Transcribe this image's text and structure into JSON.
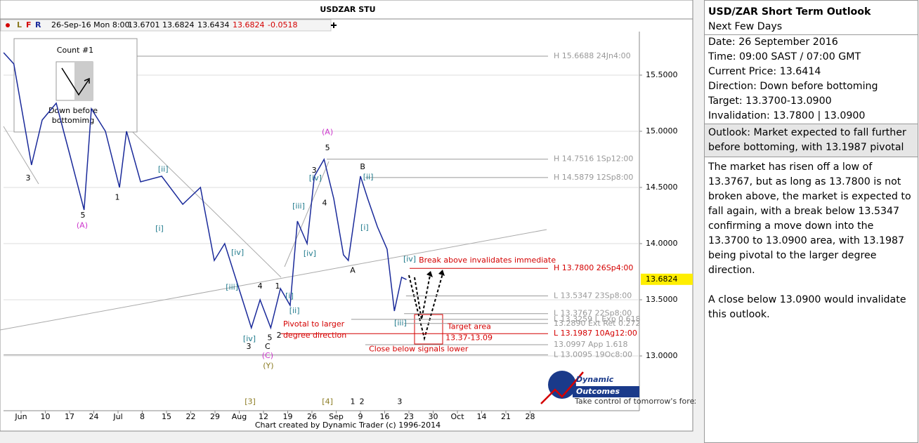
{
  "chart_data": {
    "type": "line",
    "title": "USDZAR STU",
    "color": "#1a2a9a",
    "toolbar": {
      "flags": [
        "L",
        "F",
        "R"
      ],
      "date": "26-Sep-16 Mon 8:00",
      "fields": [
        "13.6701",
        "13.6824",
        "13.6434",
        "13.6824",
        "-0.0518"
      ]
    },
    "x": [
      -0.72,
      -0.3,
      0.43,
      0.87,
      1.45,
      2.0,
      2.6,
      2.9,
      3.48,
      4.06,
      4.35,
      4.93,
      5.8,
      6.67,
      7.4,
      7.97,
      8.4,
      8.84,
      9.5,
      9.86,
      10.3,
      10.7,
      11.1,
      11.4,
      11.8,
      12.1,
      12.5,
      12.9,
      13.3,
      13.5,
      14.0,
      14.3,
      14.7,
      15.1,
      15.4,
      15.7,
      15.9
    ],
    "values": [
      15.7,
      15.6,
      14.7,
      15.1,
      15.25,
      14.8,
      14.3,
      15.2,
      15.0,
      14.5,
      15.0,
      14.55,
      14.6,
      14.35,
      14.5,
      13.85,
      14.0,
      13.7,
      13.25,
      13.5,
      13.25,
      13.6,
      13.45,
      14.2,
      14.0,
      14.6,
      14.75,
      14.4,
      13.9,
      13.85,
      14.6,
      14.4,
      14.15,
      13.95,
      13.4,
      13.7,
      13.68
    ],
    "xlim": [
      -0.7246,
      25.507
    ],
    "ylim": [
      12.5125,
      15.8875
    ],
    "xticks": [
      {
        "value": 0,
        "label": "Jun"
      },
      {
        "value": 1,
        "label": "10"
      },
      {
        "value": 2,
        "label": "17"
      },
      {
        "value": 3,
        "label": "24"
      },
      {
        "value": 4,
        "label": "Jul"
      },
      {
        "value": 5,
        "label": "8"
      },
      {
        "value": 6,
        "label": "15"
      },
      {
        "value": 7,
        "label": "22"
      },
      {
        "value": 8,
        "label": "29"
      },
      {
        "value": 9,
        "label": "Aug"
      },
      {
        "value": 10,
        "label": "12"
      },
      {
        "value": 11,
        "label": "19"
      },
      {
        "value": 12,
        "label": "26"
      },
      {
        "value": 13,
        "label": "Sep"
      },
      {
        "value": 14,
        "label": "9"
      },
      {
        "value": 15,
        "label": "16"
      },
      {
        "value": 16,
        "label": "23"
      },
      {
        "value": 17,
        "label": "30"
      },
      {
        "value": 18,
        "label": "Oct"
      },
      {
        "value": 19,
        "label": "14"
      },
      {
        "value": 20,
        "label": "21"
      },
      {
        "value": 21,
        "label": "28"
      }
    ],
    "yticks": [
      {
        "value": 15.5,
        "label": "15.5000"
      },
      {
        "value": 15,
        "label": "15.0000"
      },
      {
        "value": 14.5,
        "label": "14.5000"
      },
      {
        "value": 14,
        "label": "14.0000"
      },
      {
        "value": 13.5,
        "label": "13.5000"
      },
      {
        "value": 13,
        "label": "13.0000"
      }
    ],
    "grid": true,
    "last_price": 13.6824,
    "levels": [
      {
        "value": 15.6688,
        "label": "H 15.6688 24Jn4:00",
        "start": 4.78,
        "color": "#999999"
      },
      {
        "value": 14.7516,
        "label": "H 14.7516 1Sp12:00",
        "start": 12.61,
        "color": "#999999"
      },
      {
        "value": 14.5879,
        "label": "H 14.5879 12Sp8:00",
        "start": 14.2,
        "color": "#999999"
      },
      {
        "value": 13.78,
        "label": "H 13.7800 26Sp4:00",
        "start": 16.03,
        "color": "#d40000"
      },
      {
        "value": 13.5347,
        "label": "L 13.5347 23Sp8:00",
        "start": 15.88,
        "color": "#999999"
      },
      {
        "value": 13.3767,
        "label": "L 13.3767 22Sp8:00",
        "start": 15.8,
        "color": "#999999"
      },
      {
        "value": 13.3259,
        "label": "L 13.3259 L Exp 0.618",
        "start": 13.62,
        "color": "#999999"
      },
      {
        "value": 13.289,
        "label": "13.2890 Ext Ret 0.272",
        "start": 15.8,
        "color": "#999999"
      },
      {
        "value": 13.1987,
        "label": "L 13.1987 10Ag12:00",
        "start": 10.72,
        "color": "#d40000"
      },
      {
        "value": 13.0997,
        "label": "13.0997 App 1.618",
        "start": 14.2,
        "color": "#999999"
      },
      {
        "value": 13.0095,
        "label": "L 13.0095 19Oc8:00",
        "start": -0.72,
        "color": "#999999"
      }
    ],
    "wave_labels": [
      {
        "text": "3",
        "x": 0.29,
        "y": 14.58,
        "color": "#000000"
      },
      {
        "text": "5",
        "x": 2.55,
        "y": 14.25,
        "color": "#000000"
      },
      {
        "text": "(A)",
        "x": 2.52,
        "y": 14.16,
        "color": "#cc33cc"
      },
      {
        "text": "1",
        "x": 3.97,
        "y": 14.41,
        "color": "#000000"
      },
      {
        "text": "[ii]",
        "x": 5.86,
        "y": 14.66,
        "color": "#1f7a8c"
      },
      {
        "text": "[i]",
        "x": 5.71,
        "y": 14.13,
        "color": "#1f7a8c"
      },
      {
        "text": "[iv]",
        "x": 8.93,
        "y": 13.92,
        "color": "#1f7a8c"
      },
      {
        "text": "[iii]",
        "x": 8.7,
        "y": 13.61,
        "color": "#1f7a8c"
      },
      {
        "text": "4",
        "x": 9.86,
        "y": 13.62,
        "color": "#000000"
      },
      {
        "text": "1",
        "x": 10.58,
        "y": 13.62,
        "color": "#000000"
      },
      {
        "text": "[i]",
        "x": 11.07,
        "y": 13.53,
        "color": "#1f7a8c"
      },
      {
        "text": "[ii]",
        "x": 11.28,
        "y": 13.4,
        "color": "#1f7a8c"
      },
      {
        "text": "[iii]",
        "x": 11.45,
        "y": 14.33,
        "color": "#1f7a8c"
      },
      {
        "text": "[iv]",
        "x": 11.91,
        "y": 13.91,
        "color": "#1f7a8c"
      },
      {
        "text": "3",
        "x": 12.09,
        "y": 14.65,
        "color": "#000000"
      },
      {
        "text": "[iv]",
        "x": 12.14,
        "y": 14.58,
        "color": "#1f7a8c"
      },
      {
        "text": "4",
        "x": 12.52,
        "y": 14.36,
        "color": "#000000"
      },
      {
        "text": "5",
        "x": 12.64,
        "y": 14.85,
        "color": "#000000"
      },
      {
        "text": "(A)",
        "x": 12.64,
        "y": 14.99,
        "color": "#cc33cc"
      },
      {
        "text": "B",
        "x": 14.09,
        "y": 14.68,
        "color": "#000000"
      },
      {
        "text": "[ii]",
        "x": 14.32,
        "y": 14.59,
        "color": "#1f7a8c"
      },
      {
        "text": "[i]",
        "x": 14.17,
        "y": 14.14,
        "color": "#1f7a8c"
      },
      {
        "text": "A",
        "x": 13.68,
        "y": 13.76,
        "color": "#000000"
      },
      {
        "text": "[iv]",
        "x": 16.03,
        "y": 13.86,
        "color": "#1f7a8c"
      },
      {
        "text": "[iii]",
        "x": 15.65,
        "y": 13.29,
        "color": "#1f7a8c"
      },
      {
        "text": "[iv]",
        "x": 9.42,
        "y": 13.15,
        "color": "#1f7a8c"
      },
      {
        "text": "3",
        "x": 9.39,
        "y": 13.08,
        "color": "#000000"
      },
      {
        "text": "5",
        "x": 10.26,
        "y": 13.16,
        "color": "#000000"
      },
      {
        "text": "C",
        "x": 10.17,
        "y": 13.08,
        "color": "#000000"
      },
      {
        "text": "(C)",
        "x": 10.17,
        "y": 13.0,
        "color": "#cc33cc"
      },
      {
        "text": "(Y)",
        "x": 10.2,
        "y": 12.91,
        "color": "#8a7a20"
      },
      {
        "text": "2",
        "x": 10.64,
        "y": 13.18,
        "color": "#000000"
      },
      {
        "text": "[3]",
        "x": 9.45,
        "y": 12.59,
        "color": "#8a7a20"
      },
      {
        "text": "[4]",
        "x": 12.64,
        "y": 12.59,
        "color": "#8a7a20"
      },
      {
        "text": "1",
        "x": 13.68,
        "y": 12.59,
        "color": "#000000"
      },
      {
        "text": "2",
        "x": 14.06,
        "y": 12.59,
        "color": "#000000"
      },
      {
        "text": "3",
        "x": 15.62,
        "y": 12.59,
        "color": "#000000"
      }
    ],
    "notes": [
      {
        "text": "Pivotal to larger",
        "x": 10.81,
        "y": 13.28
      },
      {
        "text": "degree direction",
        "x": 10.81,
        "y": 13.18
      },
      {
        "text": "Target area",
        "x": 17.59,
        "y": 13.26
      },
      {
        "text": "13.37-13.09",
        "x": 17.51,
        "y": 13.16
      },
      {
        "text": "Close below signals lower",
        "x": 14.35,
        "y": 13.06
      },
      {
        "text": "Break above invalidates immediate",
        "x": 16.41,
        "y": 13.85
      }
    ],
    "inset": {
      "title": "Count #1",
      "caption": [
        "Down before",
        "bottomimg"
      ]
    },
    "credit": "Chart created by Dynamic Trader  (c)  1996-2014",
    "logo": {
      "name": [
        "Dynamic",
        "Outcomes"
      ],
      "tagline": "Take control of tomorrow's forex today"
    }
  },
  "panel": {
    "title": "USD/ZAR Short Term Outlook",
    "subtitle": "Next Few Days",
    "facts": [
      "Date: 26 September 2016",
      "Time: 09:00 SAST / 07:00 GMT",
      "Current Price: 13.6414",
      "Direction: Down before bottoming",
      "Target: 13.3700-13.0900",
      "Invalidation: 13.7800 | 13.0900"
    ],
    "outlook": "Outlook: Market expected to fall further before bottoming, with 13.1987 pivotal",
    "paragraphs": [
      "The market has risen off a low of 13.3767, but as long as 13.7800 is not broken above, the market is expected to fall again, with a break below 13.5347 confirming a move down into the 13.3700 to 13.0900 area, with 13.1987 being pivotal to the larger degree direction.",
      "A close below 13.0900 would invalidate this outlook."
    ]
  }
}
